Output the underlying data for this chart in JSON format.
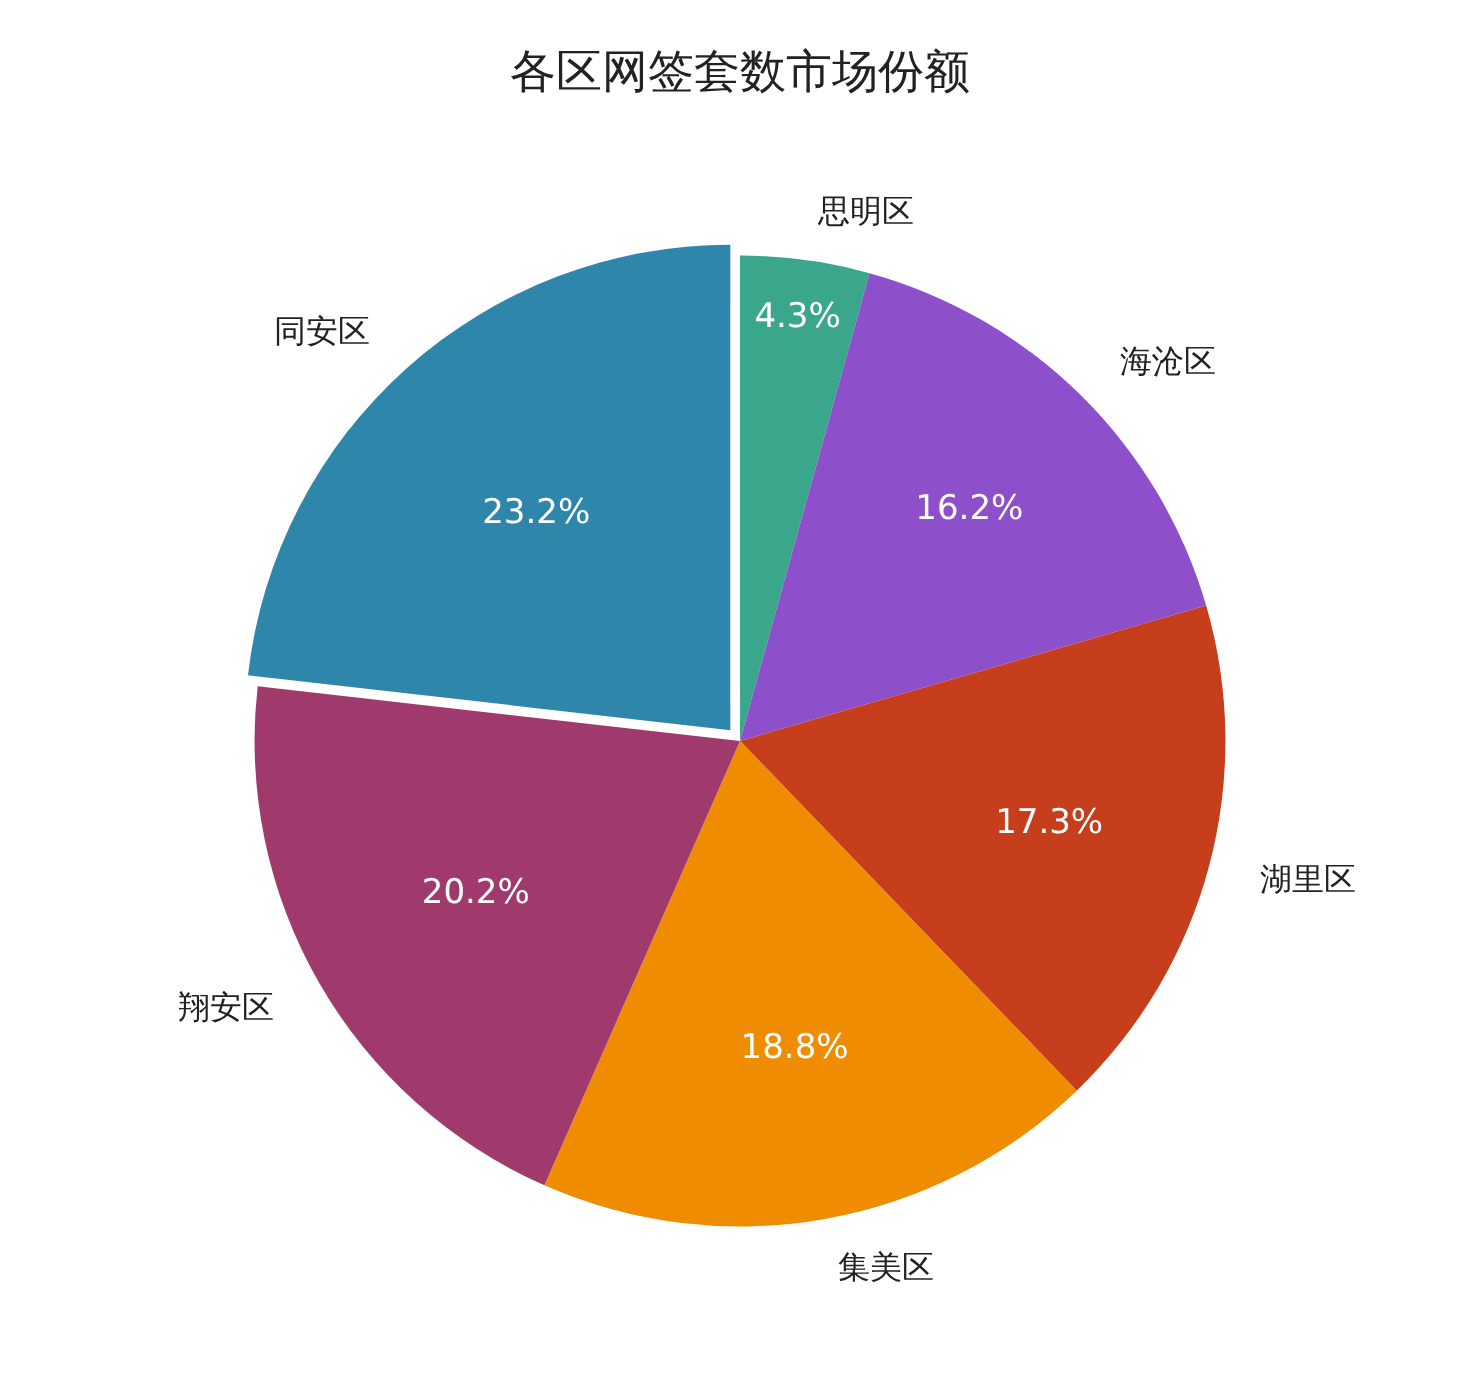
{
  "chart_data": {
    "type": "pie",
    "title": "各区网签套数市场份额",
    "categories": [
      "思明区",
      "海沧区",
      "湖里区",
      "集美区",
      "翔安区",
      "同安区"
    ],
    "values": [
      4.3,
      16.2,
      17.3,
      18.8,
      20.2,
      23.2
    ],
    "value_labels": [
      "4.3%",
      "16.2%",
      "17.3%",
      "18.8%",
      "20.2%",
      "23.2%"
    ],
    "colors": [
      "#3aa68c",
      "#8e4fcb",
      "#c63e1c",
      "#f08c00",
      "#a03a6c",
      "#2e86ab"
    ]
  }
}
